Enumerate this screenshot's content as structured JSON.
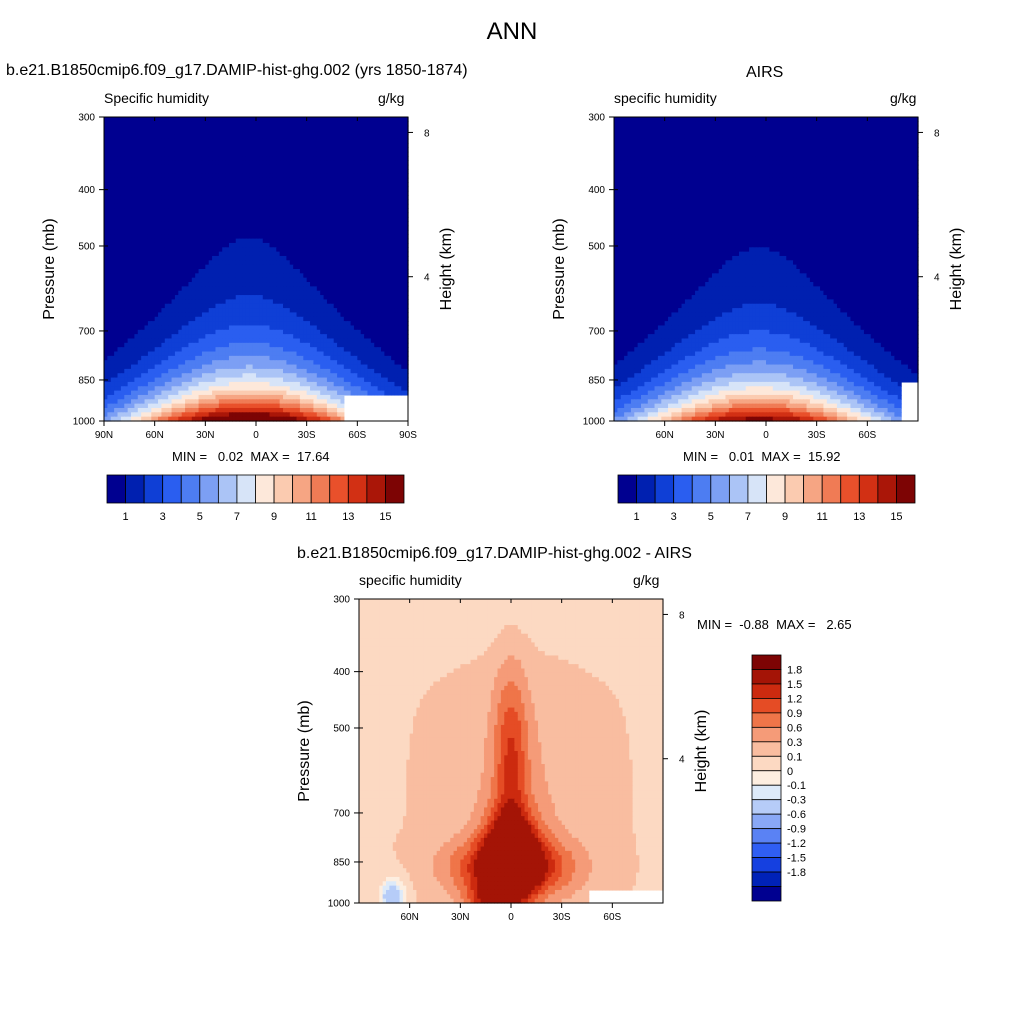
{
  "page": {
    "title": "ANN"
  },
  "colors": {
    "abs_levels": [
      "#000090",
      "#0020b0",
      "#0f3fd6",
      "#2a5ef0",
      "#4d7df2",
      "#7c9ff4",
      "#abc4f6",
      "#d7e4f8",
      "#fde8da",
      "#fbcbb0",
      "#f6a583",
      "#f07b55",
      "#e9502b",
      "#d23014",
      "#aa1608",
      "#7d0404"
    ],
    "diff_levels": [
      "#000090",
      "#0022b8",
      "#1540e0",
      "#2f5ef3",
      "#5a82f4",
      "#89a8f6",
      "#b6ccf8",
      "#ddeaf9",
      "#fdeee0",
      "#fcd9c2",
      "#f9bda0",
      "#f59b78",
      "#ef7549",
      "#e54c25",
      "#cc2a0f",
      "#a41406",
      "#7d0404"
    ]
  },
  "chart_data": [
    {
      "id": "model",
      "type": "heatmap",
      "title": "b.e21.B1850cmip6.f09_g17.DAMIP-hist-ghg.002 (yrs 1850-1874)",
      "left_label": "Specific humidity",
      "right_label": "g/kg",
      "ylabel": "Pressure (mb)",
      "ylabel_right": "Height (km)",
      "x_ticks": [
        "90N",
        "60N",
        "30N",
        "0",
        "30S",
        "60S",
        "90S"
      ],
      "x_tick_values": [
        90,
        60,
        30,
        0,
        -30,
        -60,
        -90
      ],
      "xlim": [
        90,
        -90
      ],
      "y_ticks": [
        "300",
        "400",
        "500",
        "700",
        "850",
        "1000"
      ],
      "y_tick_values": [
        300,
        400,
        500,
        700,
        850,
        1000
      ],
      "ylim": [
        300,
        1000
      ],
      "y_scale": "log",
      "height_ticks": [
        "8",
        "4"
      ],
      "height_tick_values": [
        8,
        4
      ],
      "stats": "MIN =   0.02  MAX =  17.64",
      "min": 0.02,
      "max": 17.64,
      "peak": 17.64,
      "colorbar": {
        "orientation": "horizontal",
        "labels": [
          "1",
          "3",
          "5",
          "7",
          "9",
          "11",
          "13",
          "15"
        ],
        "levels": [
          0,
          1,
          2,
          3,
          4,
          5,
          6,
          7,
          8,
          9,
          10,
          11,
          12,
          13,
          14,
          15,
          16
        ]
      },
      "blank_region": {
        "lat": [
          -53,
          -90
        ],
        "p": [
          900,
          1000
        ]
      }
    },
    {
      "id": "obs",
      "type": "heatmap",
      "title": "AIRS",
      "left_label": "specific humidity",
      "right_label": "g/kg",
      "ylabel": "Pressure (mb)",
      "ylabel_right": "Height (km)",
      "x_ticks": [
        "60N",
        "30N",
        "0",
        "30S",
        "60S"
      ],
      "x_tick_values": [
        60,
        30,
        0,
        -30,
        -60
      ],
      "xlim": [
        90,
        -90
      ],
      "y_ticks": [
        "300",
        "400",
        "500",
        "700",
        "850",
        "1000"
      ],
      "y_tick_values": [
        300,
        400,
        500,
        700,
        850,
        1000
      ],
      "ylim": [
        300,
        1000
      ],
      "y_scale": "log",
      "height_ticks": [
        "8",
        "4"
      ],
      "height_tick_values": [
        8,
        4
      ],
      "stats": "MIN =   0.01  MAX =  15.92",
      "min": 0.01,
      "max": 15.92,
      "peak": 15.92,
      "colorbar": {
        "orientation": "horizontal",
        "labels": [
          "1",
          "3",
          "5",
          "7",
          "9",
          "11",
          "13",
          "15"
        ],
        "levels": [
          0,
          1,
          2,
          3,
          4,
          5,
          6,
          7,
          8,
          9,
          10,
          11,
          12,
          13,
          14,
          15,
          16
        ]
      }
    },
    {
      "id": "diff",
      "type": "heatmap",
      "title": "b.e21.B1850cmip6.f09_g17.DAMIP-hist-ghg.002 - AIRS",
      "left_label": "specific humidity",
      "right_label": "g/kg",
      "ylabel": "Pressure (mb)",
      "ylabel_right": "Height (km)",
      "x_ticks": [
        "60N",
        "30N",
        "0",
        "30S",
        "60S"
      ],
      "x_tick_values": [
        60,
        30,
        0,
        -30,
        -60
      ],
      "xlim": [
        90,
        -90
      ],
      "y_ticks": [
        "300",
        "400",
        "500",
        "700",
        "850",
        "1000"
      ],
      "y_tick_values": [
        300,
        400,
        500,
        700,
        850,
        1000
      ],
      "ylim": [
        300,
        1000
      ],
      "y_scale": "log",
      "height_ticks": [
        "8",
        "4"
      ],
      "height_tick_values": [
        8,
        4
      ],
      "stats": "MIN =  -0.88  MAX =   2.65",
      "min": -0.88,
      "max": 2.65,
      "colorbar": {
        "orientation": "vertical",
        "labels": [
          "1.8",
          "1.5",
          "1.2",
          "0.9",
          "0.6",
          "0.3",
          "0.1",
          "0",
          "-0.1",
          "-0.3",
          "-0.6",
          "-0.9",
          "-1.2",
          "-1.5",
          "-1.8"
        ],
        "levels": [
          -1.8,
          -1.5,
          -1.2,
          -0.9,
          -0.6,
          -0.3,
          -0.1,
          0,
          0.1,
          0.3,
          0.6,
          0.9,
          1.2,
          1.5,
          1.8
        ]
      },
      "blank_region": {
        "lat": [
          -47,
          -90
        ],
        "p": [
          950,
          1000
        ]
      }
    }
  ]
}
